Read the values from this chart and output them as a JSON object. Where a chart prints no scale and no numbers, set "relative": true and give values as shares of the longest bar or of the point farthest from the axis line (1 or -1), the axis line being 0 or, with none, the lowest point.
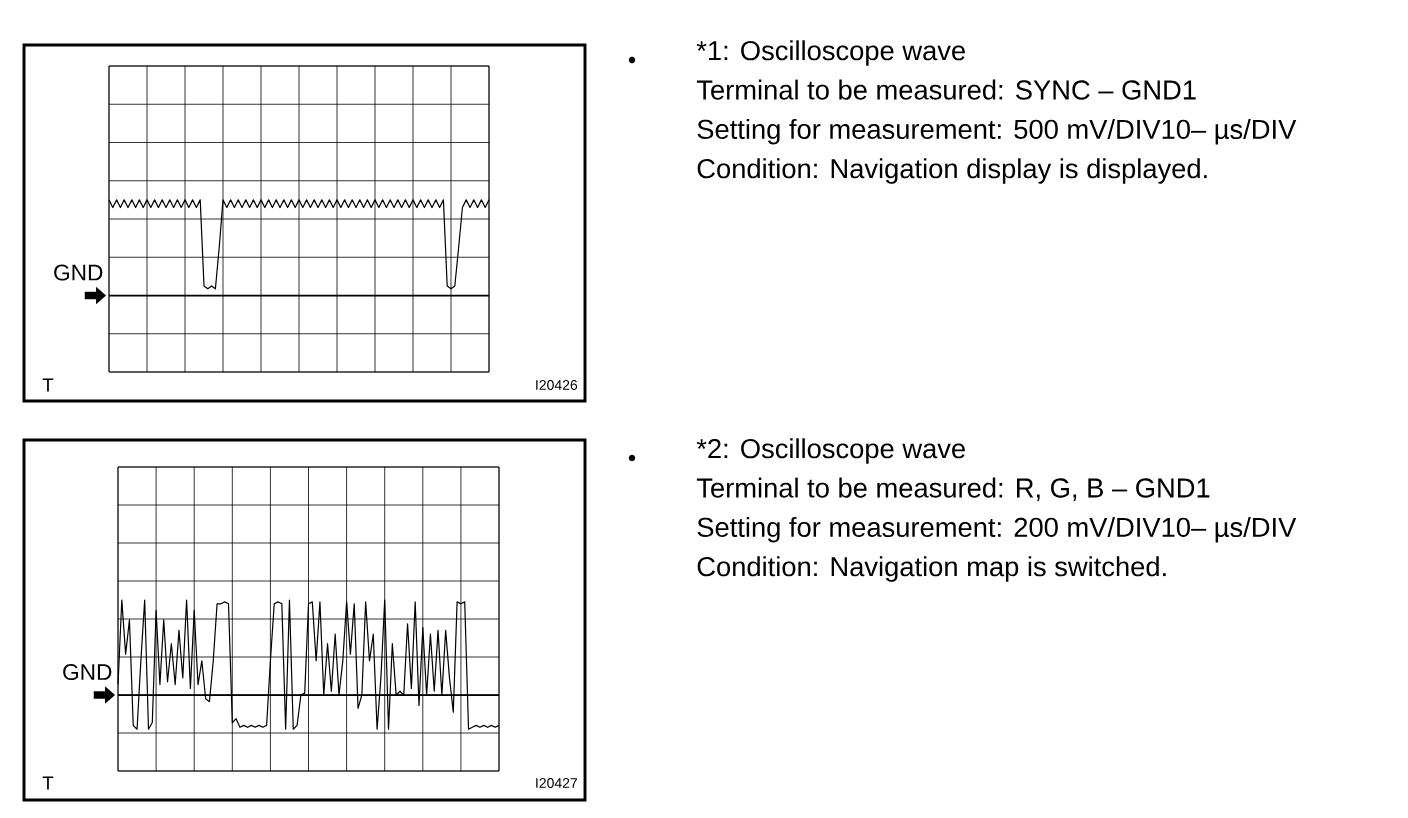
{
  "chart_data": [
    {
      "type": "line",
      "relative": true,
      "grid": true,
      "tick_labels": false,
      "categories": [
        null,
        null,
        null,
        null,
        null,
        null,
        null,
        null,
        null,
        null,
        null,
        null,
        null,
        null,
        null,
        null,
        null,
        null,
        null,
        null,
        null,
        null,
        null,
        null,
        null,
        null,
        null,
        null,
        null,
        null,
        null,
        null,
        null,
        null,
        null,
        null,
        null,
        null,
        null,
        null,
        null,
        null,
        null,
        null,
        null,
        null,
        null,
        null,
        null,
        null,
        null,
        null,
        null,
        null,
        null,
        null,
        null,
        null,
        null,
        null,
        null,
        null,
        null,
        null,
        null,
        null,
        null,
        null,
        null,
        null,
        null,
        null,
        null,
        null,
        null,
        null,
        null,
        null,
        null,
        null,
        null,
        null,
        null,
        null,
        null,
        null,
        null,
        null,
        null,
        null,
        null,
        null,
        null,
        null,
        null,
        null,
        null,
        null,
        null,
        null,
        null
      ],
      "series": [
        {
          "color": "#000000",
          "values": [
            1,
            0.92,
            1,
            0.92,
            1,
            0.92,
            1,
            0.92,
            1,
            0.92,
            1,
            0.92,
            1,
            0.92,
            1,
            0.92,
            1,
            0.92,
            1,
            0.92,
            1,
            0.92,
            1,
            0.92,
            1,
            0.1,
            0.07,
            0.1,
            0.07,
            0.5,
            1,
            0.92,
            1,
            0.92,
            1,
            0.92,
            1,
            0.92,
            1,
            0.92,
            1,
            0.92,
            1,
            0.92,
            1,
            0.92,
            1,
            0.92,
            1,
            0.92,
            1,
            0.92,
            1,
            0.92,
            1,
            0.92,
            1,
            0.92,
            1,
            0.92,
            1,
            0.92,
            1,
            0.92,
            1,
            0.92,
            1,
            0.92,
            1,
            0.92,
            1,
            0.92,
            1,
            0.92,
            1,
            0.92,
            1,
            0.92,
            1,
            0.92,
            1,
            0.92,
            1,
            0.92,
            1,
            0.92,
            1,
            0.92,
            1,
            0.1,
            0.07,
            0.1,
            0.5,
            0.92,
            1,
            0.92,
            1,
            0.92,
            1,
            0.92,
            1
          ]
        }
      ],
      "ref_lines": [
        {
          "axis": "y",
          "value": 0,
          "label": "GND"
        }
      ],
      "annotations": [
        "T",
        "I20426"
      ]
    },
    {
      "type": "other",
      "title": "*1: Oscilloscope wave",
      "annotations": [
        "Terminal to be measured: SYNC – GND1",
        "Setting for measurement: 500 mV/DIV10– µs/DIV",
        "Condition: Navigation display is displayed."
      ]
    },
    {
      "type": "line",
      "relative": true,
      "grid": true,
      "tick_labels": false,
      "categories": [
        null,
        null,
        null,
        null,
        null,
        null,
        null,
        null,
        null,
        null,
        null,
        null,
        null,
        null,
        null,
        null,
        null,
        null,
        null,
        null,
        null,
        null,
        null,
        null,
        null,
        null,
        null,
        null,
        null,
        null,
        null,
        null,
        null,
        null,
        null,
        null,
        null,
        null,
        null,
        null,
        null,
        null,
        null,
        null,
        null,
        null,
        null,
        null,
        null,
        null,
        null,
        null,
        null,
        null,
        null,
        null,
        null,
        null,
        null,
        null,
        null,
        null,
        null,
        null,
        null,
        null,
        null,
        null,
        null,
        null,
        null,
        null,
        null,
        null,
        null,
        null,
        null,
        null,
        null,
        null,
        null,
        null,
        null,
        null,
        null,
        null,
        null,
        null,
        null,
        null,
        null,
        null,
        null,
        null,
        null,
        null,
        null,
        null,
        null,
        null,
        null
      ],
      "series": [
        {
          "color": "#000000",
          "values": [
            0.11,
            1,
            0.43,
            0.79,
            -0.32,
            -0.36,
            0.36,
            1,
            -0.36,
            -0.29,
            0.89,
            0.11,
            0.79,
            0.14,
            0.54,
            0.11,
            0.68,
            0.18,
            1,
            0.07,
            0.89,
            0.11,
            0.36,
            -0.04,
            -0.07,
            0.36,
            0.96,
            0.96,
            0.98,
            0.96,
            -0.29,
            -0.25,
            -0.34,
            -0.32,
            -0.34,
            -0.32,
            -0.34,
            -0.32,
            -0.34,
            -0.32,
            0.36,
            0.96,
            0.98,
            0.96,
            -0.36,
            1,
            -0.36,
            -0.32,
            0,
            0.02,
            0.96,
            0.98,
            0.36,
            0.98,
            0,
            0.54,
            0.04,
            0.64,
            0,
            0.36,
            0.98,
            0.43,
            0.96,
            -0.14,
            0,
            0.98,
            0.36,
            0.64,
            -0.36,
            0.18,
            1,
            -0.36,
            0.54,
            0,
            0.04,
            0,
            0.75,
            0.07,
            0.98,
            -0.11,
            0.71,
            0,
            0.64,
            0.04,
            0.68,
            0,
            0.68,
            0.18,
            -0.18,
            0.98,
            0.96,
            0.98,
            -0.36,
            -0.34,
            -0.32,
            -0.34,
            -0.32,
            -0.34,
            -0.32,
            -0.34,
            -0.32
          ]
        }
      ],
      "ref_lines": [
        {
          "axis": "y",
          "value": 0,
          "label": "GND"
        }
      ],
      "annotations": [
        "T",
        "I20427"
      ]
    },
    {
      "type": "other",
      "title": "*2: Oscilloscope wave",
      "annotations": [
        "Terminal to be measured: R, G, B – GND1",
        "Setting for measurement: 200 mV/DIV10– µs/DIV",
        "Condition: Navigation map is switched."
      ]
    }
  ]
}
